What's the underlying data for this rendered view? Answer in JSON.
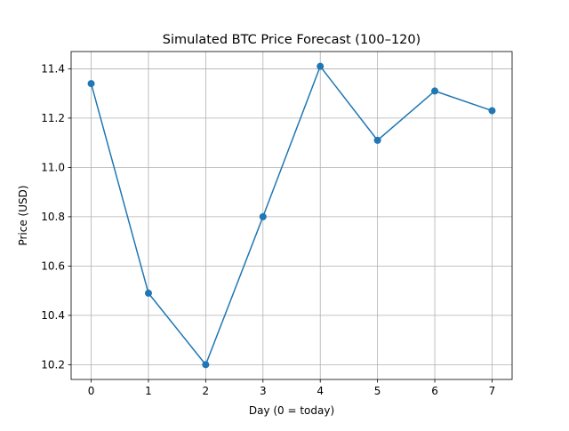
{
  "chart_data": {
    "type": "line",
    "title": "Simulated BTC Price Forecast (100–120)",
    "xlabel": "Day (0 = today)",
    "ylabel": "Price (USD)",
    "x": [
      0,
      1,
      2,
      3,
      4,
      5,
      6,
      7
    ],
    "series": [
      {
        "values": [
          11.34,
          10.49,
          10.2,
          10.8,
          11.41,
          11.11,
          11.31,
          11.23
        ],
        "color": "#1f77b4",
        "marker": "circle"
      }
    ],
    "x_ticks": [
      0,
      1,
      2,
      3,
      4,
      5,
      6,
      7
    ],
    "x_tick_labels": [
      "0",
      "1",
      "2",
      "3",
      "4",
      "5",
      "6",
      "7"
    ],
    "y_ticks": [
      10.2,
      10.4,
      10.6,
      10.8,
      11.0,
      11.2,
      11.4
    ],
    "y_tick_labels": [
      "10.2",
      "10.4",
      "10.6",
      "10.8",
      "11.0",
      "11.2",
      "11.4"
    ],
    "xlim": [
      -0.35,
      7.35
    ],
    "ylim": [
      10.14,
      11.47
    ],
    "grid": true,
    "grid_color": "#b0b0b0"
  }
}
